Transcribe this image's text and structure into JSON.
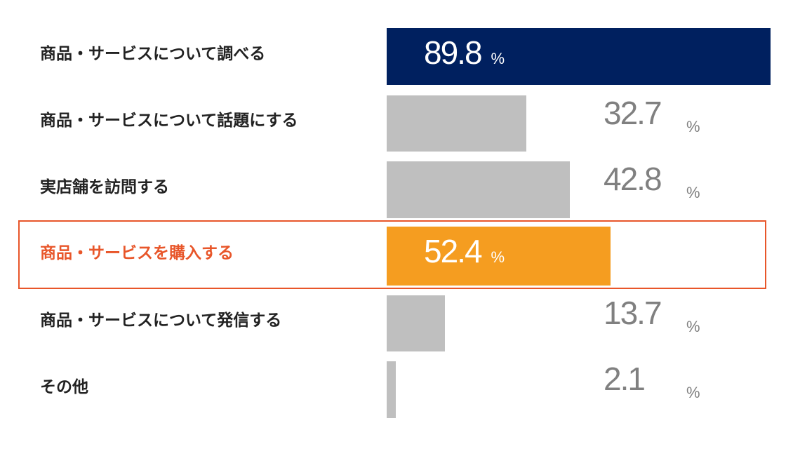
{
  "chart_data": {
    "type": "bar",
    "orientation": "horizontal",
    "categories": [
      "商品・サービスについて調べる",
      "商品・サービスについて話題にする",
      "実店舗を訪問する",
      "商品・サービスを購入する",
      "商品・サービスについて発信する",
      "その他"
    ],
    "values": [
      89.8,
      32.7,
      42.8,
      52.4,
      13.7,
      2.1
    ],
    "value_labels": [
      "89.8",
      "32.7",
      "42.8",
      "52.4",
      "13.7",
      "2.1"
    ],
    "unit": "%",
    "xlim": [
      0,
      89.8
    ],
    "highlighted_index": 3,
    "grid": false,
    "legend": "none"
  },
  "colors": {
    "top_bar": "#00205f",
    "highlight_bar": "#f59d20",
    "default_bar": "#bfbfbf",
    "highlight_text": "#e8562a",
    "highlight_border": "#e8562a",
    "label_text": "#222222",
    "outside_value_text": "#808080",
    "inside_value_text": "#ffffff"
  }
}
